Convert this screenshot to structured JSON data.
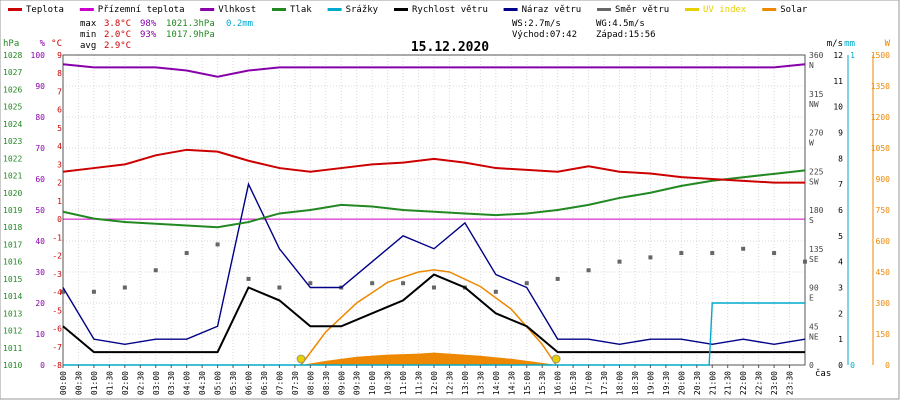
{
  "legend": [
    {
      "label": "Teplota",
      "color": "#cc0000"
    },
    {
      "label": "Přízemní teplota",
      "color": "#cc00cc"
    },
    {
      "label": "Vlhkost",
      "color": "#8800aa"
    },
    {
      "label": "Tlak",
      "color": "#228822"
    },
    {
      "label": "Srážky",
      "color": "#00aacc"
    },
    {
      "label": "Rychlost větru",
      "color": "#000000"
    },
    {
      "label": "Náraz větru",
      "color": "#000088"
    },
    {
      "label": "Směr větru",
      "color": "#666666"
    },
    {
      "label": "UV index",
      "color": "#e8d000"
    },
    {
      "label": "Solar",
      "color": "#ee8800"
    }
  ],
  "stats": {
    "max_label": "max",
    "max_temp": "3.8°C",
    "max_hum": "98%",
    "max_press": "1021.3hPa",
    "rain_total": "0.2mm",
    "min_label": "min",
    "min_temp": "2.0°C",
    "min_hum": "93%",
    "min_press": "1017.9hPa",
    "avg_label": "avg",
    "avg_temp": "2.9°C",
    "ws": "WS:2.7m/s",
    "wg": "WG:4.5m/s",
    "sunrise": "Východ:07:42",
    "sunset": "Západ:15:56"
  },
  "colors": {
    "temp": "#cc0000",
    "hum": "#8800aa",
    "press": "#228822",
    "rain": "#00aacc",
    "wind": "#000000",
    "gust": "#000088",
    "dir": "#666666",
    "uv": "#e8d000",
    "solar": "#ee8800",
    "ground": "#cc00cc"
  },
  "chart_data": {
    "type": "line",
    "title": "15.12.2020",
    "xlabel": "čas",
    "x_ticks": [
      "00:00",
      "00:30",
      "01:00",
      "01:30",
      "02:00",
      "02:30",
      "03:00",
      "03:30",
      "04:00",
      "04:30",
      "05:00",
      "05:30",
      "06:00",
      "06:30",
      "07:00",
      "07:30",
      "08:00",
      "08:30",
      "09:00",
      "09:30",
      "10:00",
      "10:30",
      "11:00",
      "11:30",
      "12:00",
      "12:30",
      "13:00",
      "13:30",
      "14:00",
      "14:30",
      "15:00",
      "15:30",
      "16:00",
      "16:30",
      "17:00",
      "17:30",
      "18:00",
      "18:30",
      "19:00",
      "19:30",
      "20:00",
      "20:30",
      "21:00",
      "21:30",
      "22:00",
      "22:30",
      "23:00",
      "23:30"
    ],
    "axes": {
      "hpa_label": "hPa",
      "hpa_ticks": [
        "1028",
        "1027",
        "1026",
        "1025",
        "1024",
        "1023",
        "1022",
        "1021",
        "1020",
        "1019",
        "1018",
        "1017",
        "1016",
        "1015",
        "1014",
        "1013",
        "1012",
        "1011",
        "1010"
      ],
      "pct_label": "%",
      "pct_ticks": [
        "100",
        "90",
        "80",
        "70",
        "60",
        "50",
        "40",
        "30",
        "20",
        "10",
        "0"
      ],
      "temp_label": "°C",
      "temp_ticks": [
        "9",
        "8",
        "7",
        "6",
        "5",
        "4",
        "3",
        "2",
        "1",
        "0",
        "-1",
        "-2",
        "-3",
        "-4",
        "-5",
        "-6",
        "-7",
        "-8"
      ],
      "dir_ticks": [
        "360\nN",
        "315\nNW",
        "270\nW",
        "225\nSW",
        "180\nS",
        "135\nSE",
        "90\nE",
        "45\nNE",
        "0"
      ],
      "ms_label": "m/s",
      "ms_ticks": [
        "12",
        "11",
        "10",
        "9",
        "8",
        "7",
        "6",
        "5",
        "4",
        "3",
        "2",
        "1",
        "0"
      ],
      "mm_label": "mm",
      "mm_ticks": [
        "1",
        "0"
      ],
      "w_label": "W",
      "w_ticks": [
        "1500",
        "1350",
        "1200",
        "1050",
        "900",
        "750",
        "600",
        "450",
        "300",
        "150",
        "0"
      ]
    },
    "series": [
      {
        "name": "Teplota",
        "unit": "°C",
        "x_hours": [
          0,
          1,
          2,
          3,
          4,
          5,
          6,
          7,
          8,
          9,
          10,
          11,
          12,
          13,
          14,
          15,
          16,
          17,
          18,
          19,
          20,
          21,
          22,
          23,
          24
        ],
        "values": [
          2.6,
          2.8,
          3.0,
          3.5,
          3.8,
          3.7,
          3.2,
          2.8,
          2.6,
          2.8,
          3.0,
          3.1,
          3.3,
          3.1,
          2.8,
          2.7,
          2.6,
          2.9,
          2.6,
          2.5,
          2.3,
          2.2,
          2.1,
          2.0,
          2.0
        ]
      },
      {
        "name": "Vlhkost",
        "unit": "%",
        "x_hours": [
          0,
          1,
          2,
          3,
          4,
          5,
          6,
          7,
          8,
          9,
          10,
          11,
          12,
          13,
          14,
          15,
          16,
          17,
          18,
          19,
          20,
          21,
          22,
          23,
          24
        ],
        "values": [
          97,
          96,
          96,
          96,
          95,
          93,
          95,
          96,
          96,
          96,
          96,
          96,
          96,
          96,
          96,
          96,
          96,
          96,
          96,
          96,
          96,
          96,
          96,
          96,
          97
        ]
      },
      {
        "name": "Tlak",
        "unit": "hPa",
        "x_hours": [
          0,
          1,
          2,
          3,
          4,
          5,
          6,
          7,
          8,
          9,
          10,
          11,
          12,
          13,
          14,
          15,
          16,
          17,
          18,
          19,
          20,
          21,
          22,
          23,
          24
        ],
        "values": [
          1018.9,
          1018.5,
          1018.3,
          1018.2,
          1018.1,
          1018.0,
          1018.3,
          1018.8,
          1019.0,
          1019.3,
          1019.2,
          1019.0,
          1018.9,
          1018.8,
          1018.7,
          1018.8,
          1019.0,
          1019.3,
          1019.7,
          1020.0,
          1020.4,
          1020.7,
          1020.9,
          1021.1,
          1021.3
        ]
      },
      {
        "name": "Srážky",
        "unit": "mm",
        "x_hours": [
          0,
          20.9,
          21.0,
          24
        ],
        "values": [
          0,
          0,
          0.2,
          0.2
        ]
      },
      {
        "name": "Rychlost větru",
        "unit": "m/s",
        "x_hours": [
          0,
          1,
          2,
          3,
          4,
          5,
          6,
          7,
          8,
          9,
          10,
          11,
          12,
          13,
          14,
          15,
          16,
          17,
          18,
          19,
          20,
          21,
          22,
          23,
          24
        ],
        "values": [
          1.5,
          0.5,
          0.5,
          0.5,
          0.5,
          0.5,
          3.0,
          2.5,
          1.5,
          1.5,
          2.0,
          2.5,
          3.5,
          3.0,
          2.0,
          1.5,
          0.5,
          0.5,
          0.5,
          0.5,
          0.5,
          0.5,
          0.5,
          0.5,
          0.5
        ]
      },
      {
        "name": "Náraz větru",
        "unit": "m/s",
        "x_hours": [
          0,
          1,
          2,
          3,
          4,
          5,
          6,
          7,
          8,
          9,
          10,
          11,
          12,
          13,
          14,
          15,
          16,
          17,
          18,
          19,
          20,
          21,
          22,
          23,
          24
        ],
        "values": [
          3.0,
          1.0,
          0.8,
          1.0,
          1.0,
          1.5,
          7.0,
          4.5,
          3.0,
          3.0,
          4.0,
          5.0,
          4.5,
          5.5,
          3.5,
          3.0,
          1.0,
          1.0,
          0.8,
          1.0,
          1.0,
          0.8,
          1.0,
          0.8,
          1.0
        ]
      },
      {
        "name": "Směr větru",
        "unit": "°",
        "x_hours": [
          0,
          1,
          2,
          3,
          4,
          5,
          6,
          7,
          8,
          9,
          10,
          11,
          12,
          13,
          14,
          15,
          16,
          17,
          18,
          19,
          20,
          21,
          22,
          23,
          24
        ],
        "values": [
          85,
          85,
          90,
          110,
          130,
          140,
          100,
          90,
          95,
          90,
          95,
          95,
          90,
          90,
          85,
          95,
          100,
          110,
          120,
          125,
          130,
          130,
          135,
          130,
          120
        ]
      },
      {
        "name": "Solar",
        "unit": "W",
        "x_hours": [
          7.7,
          8.5,
          9.5,
          10.5,
          11.5,
          12.0,
          12.5,
          13.5,
          14.5,
          15.5,
          15.95
        ],
        "values": [
          0,
          20,
          40,
          50,
          55,
          60,
          55,
          45,
          30,
          10,
          0
        ]
      },
      {
        "name": "Solar max",
        "unit": "W",
        "x_hours": [
          7.7,
          8.5,
          9.5,
          10.5,
          11.5,
          12.0,
          12.5,
          13.5,
          14.5,
          15.5,
          15.95
        ],
        "values": [
          0,
          160,
          300,
          400,
          450,
          460,
          450,
          380,
          270,
          100,
          0
        ]
      }
    ]
  }
}
